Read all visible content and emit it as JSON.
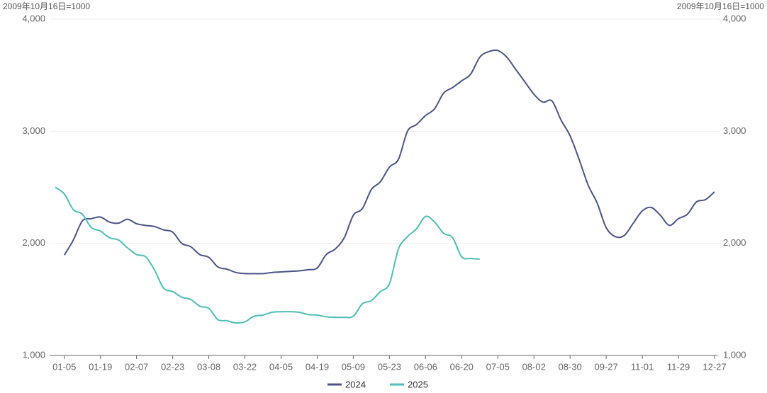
{
  "chart_data": {
    "type": "line",
    "y_label": "2009年10月16日=1000",
    "y2_label": "2009年10月16日=1000",
    "categories": [
      null,
      "01-05",
      null,
      null,
      null,
      "01-19",
      null,
      null,
      null,
      "02-07",
      null,
      null,
      null,
      "02-23",
      null,
      null,
      null,
      "03-08",
      null,
      null,
      null,
      "03-22",
      null,
      null,
      null,
      "04-05",
      null,
      null,
      null,
      "04-19",
      null,
      null,
      null,
      "05-09",
      null,
      null,
      null,
      "05-23",
      null,
      null,
      null,
      "06-06",
      null,
      null,
      null,
      "06-20",
      null,
      null,
      null,
      "07-05",
      null,
      null,
      null,
      "08-02",
      null,
      null,
      null,
      "08-30",
      null,
      null,
      null,
      "09-27",
      null,
      null,
      null,
      "11-01",
      null,
      null,
      null,
      "11-29",
      null,
      null,
      null,
      "12-27"
    ],
    "series": [
      {
        "name": "2024",
        "color": "#4a5488",
        "values": [
          null,
          1895,
          2030,
          2200,
          2220,
          2235,
          2190,
          2180,
          2215,
          2175,
          2160,
          2150,
          2120,
          2100,
          2000,
          1970,
          1900,
          1875,
          1790,
          1770,
          1740,
          1730,
          1730,
          1730,
          1740,
          1745,
          1750,
          1755,
          1765,
          1780,
          1900,
          1950,
          2050,
          2250,
          2310,
          2480,
          2550,
          2680,
          2750,
          3000,
          3060,
          3140,
          3200,
          3340,
          3390,
          3450,
          3510,
          3660,
          3710,
          3720,
          3660,
          3550,
          3440,
          3330,
          3260,
          3270,
          3100,
          2960,
          2750,
          2520,
          2360,
          2140,
          2060,
          2070,
          2180,
          2290,
          2320,
          2250,
          2160,
          2220,
          2260,
          2370,
          2390,
          2460
        ]
      },
      {
        "name": "2025",
        "color": "#4dbfb6",
        "values": [
          2500,
          2440,
          2300,
          2260,
          2140,
          2110,
          2050,
          2030,
          1960,
          1900,
          1880,
          1760,
          1600,
          1570,
          1520,
          1500,
          1440,
          1420,
          1320,
          1310,
          1290,
          1300,
          1350,
          1360,
          1385,
          1390,
          1390,
          1385,
          1365,
          1360,
          1345,
          1340,
          1340,
          1350,
          1460,
          1490,
          1570,
          1640,
          1950,
          2060,
          2130,
          2240,
          2190,
          2090,
          2050,
          1880,
          1865,
          1860,
          null,
          null,
          null,
          null,
          null,
          null,
          null,
          null,
          null,
          null,
          null,
          null,
          null,
          null,
          null,
          null,
          null,
          null,
          null,
          null,
          null,
          null,
          null,
          null,
          null,
          null
        ]
      }
    ],
    "ylim": [
      1000,
      4000
    ],
    "yticks": [
      {
        "value": 1000,
        "label": "1,000"
      },
      {
        "value": 2000,
        "label": "2,000"
      },
      {
        "value": 3000,
        "label": "3,000"
      },
      {
        "value": 4000,
        "label": "4,000"
      }
    ],
    "y2lim": [
      1000,
      4000
    ],
    "y2ticks": [
      {
        "value": 1000,
        "label": "1,000"
      },
      {
        "value": 2000,
        "label": "2,000"
      },
      {
        "value": 3000,
        "label": "3,000"
      },
      {
        "value": 4000,
        "label": "4,000"
      }
    ],
    "grid": true,
    "legend": "bottom"
  }
}
